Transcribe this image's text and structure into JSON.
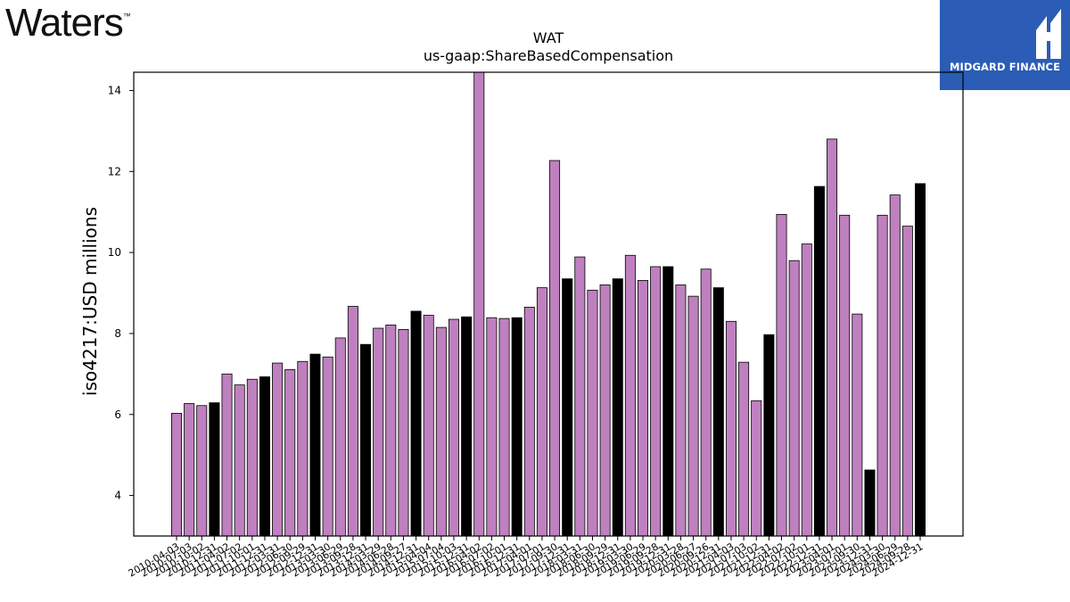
{
  "header": {
    "company_logo": "Waters",
    "company_logo_mark": "™",
    "badge_label": "MIDGARD FINANCE"
  },
  "colors": {
    "bar_regular": "#bf80bf",
    "bar_highlight": "#000000",
    "badge_bg": "#2b5db6"
  },
  "chart_data": {
    "type": "bar",
    "title": "WAT",
    "subtitle": "us-gaap:ShareBasedCompensation",
    "ylabel": "iso4217:USD  millions",
    "xlabel": "",
    "ylim": [
      3,
      14.45
    ],
    "yticks": [
      4,
      6,
      8,
      10,
      12,
      14
    ],
    "grid": false,
    "categories": [
      "2010-04-03",
      "2010-07-03",
      "2010-10-02",
      "2010-12-31",
      "2011-04-02",
      "2011-07-02",
      "2011-10-01",
      "2011-12-31",
      "2012-03-31",
      "2012-06-30",
      "2012-09-29",
      "2012-12-31",
      "2013-03-30",
      "2013-06-29",
      "2013-09-28",
      "2013-12-31",
      "2014-03-29",
      "2014-06-28",
      "2014-09-27",
      "2014-12-31",
      "2015-04-04",
      "2015-07-04",
      "2015-10-03",
      "2015-12-31",
      "2016-04-02",
      "2016-07-02",
      "2016-10-01",
      "2016-12-31",
      "2017-04-01",
      "2017-07-01",
      "2017-09-30",
      "2017-12-31",
      "2018-03-31",
      "2018-06-30",
      "2018-09-29",
      "2018-12-31",
      "2019-03-30",
      "2019-06-29",
      "2019-09-28",
      "2019-12-31",
      "2020-03-28",
      "2020-06-27",
      "2020-09-26",
      "2020-12-31",
      "2021-04-03",
      "2021-07-03",
      "2021-10-02",
      "2021-12-31",
      "2022-04-02",
      "2022-07-02",
      "2022-10-01",
      "2022-12-31",
      "2023-04-01",
      "2023-07-01",
      "2023-09-30",
      "2023-12-31",
      "2024-03-30",
      "2024-06-29",
      "2024-09-28",
      "2024-12-31"
    ],
    "values": [
      6.03,
      6.27,
      6.22,
      6.29,
      7.0,
      6.73,
      6.87,
      6.93,
      7.27,
      7.11,
      7.31,
      7.49,
      7.42,
      7.89,
      8.67,
      7.73,
      8.13,
      8.21,
      8.1,
      8.55,
      8.45,
      8.15,
      8.35,
      8.41,
      14.45,
      8.39,
      8.37,
      8.39,
      8.65,
      9.13,
      12.27,
      9.35,
      9.89,
      9.07,
      9.2,
      9.35,
      9.93,
      9.31,
      9.65,
      9.65,
      9.2,
      8.92,
      9.59,
      9.13,
      8.3,
      7.29,
      6.34,
      7.97,
      10.94,
      9.8,
      10.21,
      11.63,
      12.8,
      10.92,
      8.48,
      4.63,
      10.92,
      11.42,
      10.65,
      11.7
    ],
    "highlight_period_end": "-12-31"
  }
}
